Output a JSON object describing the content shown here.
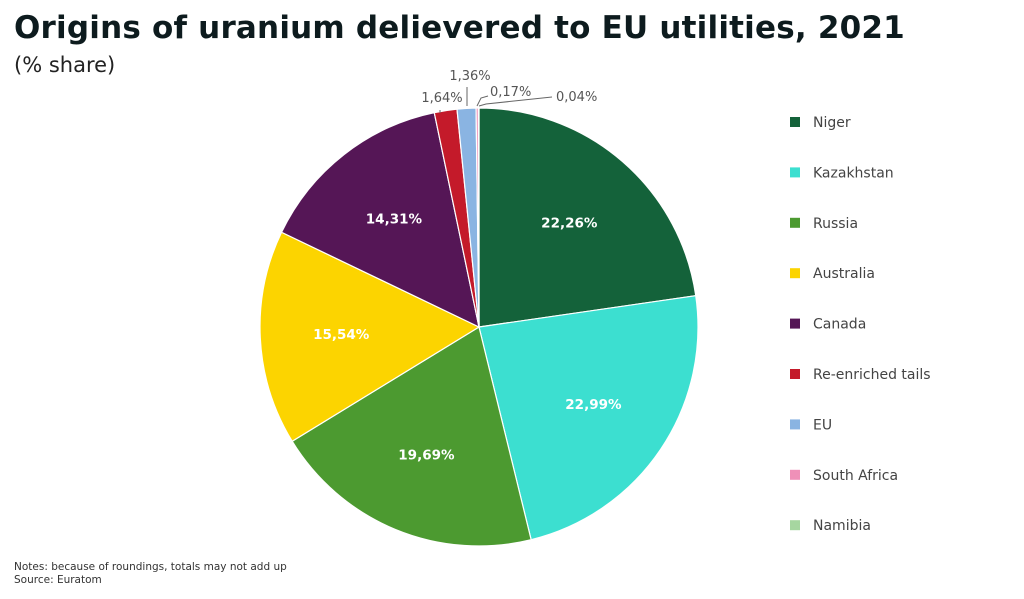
{
  "title": "Origins of uranium delievered to EU utilities, 2021",
  "subtitle": "(% share)",
  "notes": "Notes: because of roundings, totals may not add up",
  "source": "Source: Euratom",
  "chart_data": {
    "type": "pie",
    "title": "Origins of uranium delievered to EU utilities, 2021",
    "subtitle": "(% share)",
    "legend_position": "right",
    "slices": [
      {
        "label": "Niger",
        "value": 22.26,
        "display": "22,26%",
        "color": "#14623a"
      },
      {
        "label": "Kazakhstan",
        "value": 22.99,
        "display": "22,99%",
        "color": "#3cdfd0"
      },
      {
        "label": "Russia",
        "value": 19.69,
        "display": "19,69%",
        "color": "#4c9a30"
      },
      {
        "label": "Australia",
        "value": 15.54,
        "display": "15,54%",
        "color": "#fcd400"
      },
      {
        "label": "Canada",
        "value": 14.31,
        "display": "14,31%",
        "color": "#551656"
      },
      {
        "label": "Re-enriched tails",
        "value": 1.64,
        "display": "1,64%",
        "color": "#c41a2a"
      },
      {
        "label": "EU",
        "value": 1.36,
        "display": "1,36%",
        "color": "#8ab4e2"
      },
      {
        "label": "South Africa",
        "value": 0.17,
        "display": "0,17%",
        "color": "#ef90b8"
      },
      {
        "label": "Namibia",
        "value": 0.04,
        "display": "0,04%",
        "color": "#a6d6a0"
      }
    ]
  }
}
